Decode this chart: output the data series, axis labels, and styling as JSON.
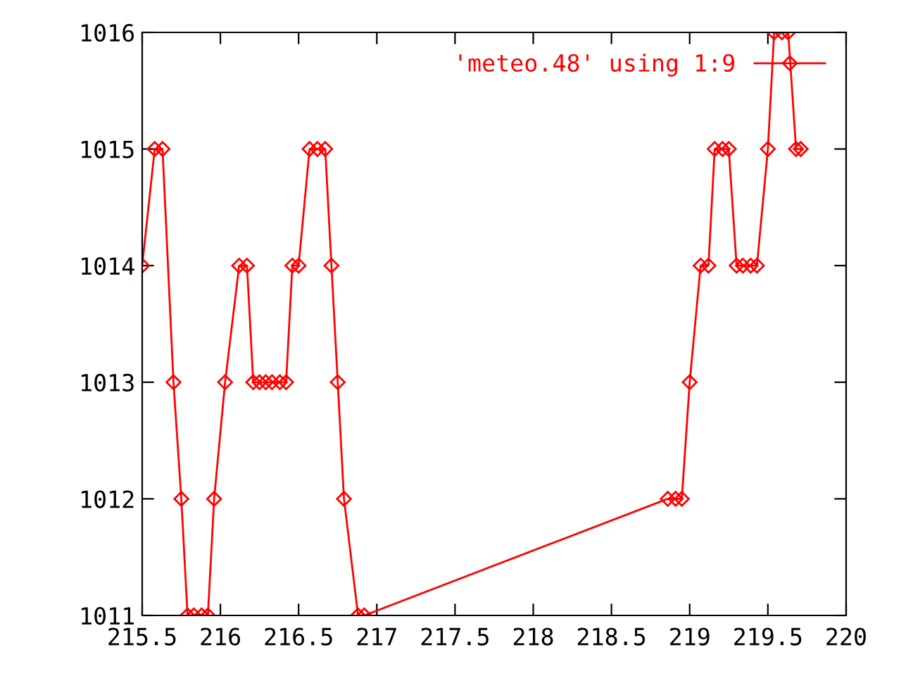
{
  "chart_data": {
    "type": "line",
    "marker": "diamond",
    "line_style": "solid",
    "grid": false,
    "legend": "top right",
    "xlim": [
      215.5,
      220
    ],
    "xticks": [
      215.5,
      216,
      216.5,
      217,
      217.5,
      218,
      218.5,
      219,
      219.5,
      220
    ],
    "ylim": [
      1011,
      1016
    ],
    "yticks": [
      1011,
      1012,
      1013,
      1014,
      1015,
      1016
    ],
    "series": [
      {
        "name": "'meteo.48' using 1:9",
        "color": "#ff0000",
        "x": [
          215.5,
          215.58,
          215.63,
          215.7,
          215.75,
          215.79,
          215.83,
          215.88,
          215.92,
          215.96,
          216.03,
          216.12,
          216.17,
          216.21,
          216.25,
          216.29,
          216.33,
          216.38,
          216.42,
          216.46,
          216.5,
          216.57,
          216.62,
          216.67,
          216.71,
          216.75,
          216.79,
          216.88,
          216.92,
          218.86,
          218.91,
          218.95,
          219.0,
          219.07,
          219.12,
          219.16,
          219.21,
          219.25,
          219.3,
          219.34,
          219.39,
          219.43,
          219.5,
          219.54,
          219.59,
          219.63,
          219.68,
          219.71
        ],
        "values": [
          1014,
          1015,
          1015,
          1013,
          1012,
          1011,
          1011,
          1011,
          1011,
          1012,
          1013,
          1014,
          1014,
          1013,
          1013,
          1013,
          1013,
          1013,
          1013,
          1014,
          1014,
          1015,
          1015,
          1015,
          1014,
          1013,
          1012,
          1011,
          1011,
          1012,
          1012,
          1012,
          1013,
          1014,
          1014,
          1015,
          1015,
          1015,
          1014,
          1014,
          1014,
          1014,
          1015,
          1016,
          1016,
          1016,
          1015,
          1015
        ]
      }
    ]
  }
}
